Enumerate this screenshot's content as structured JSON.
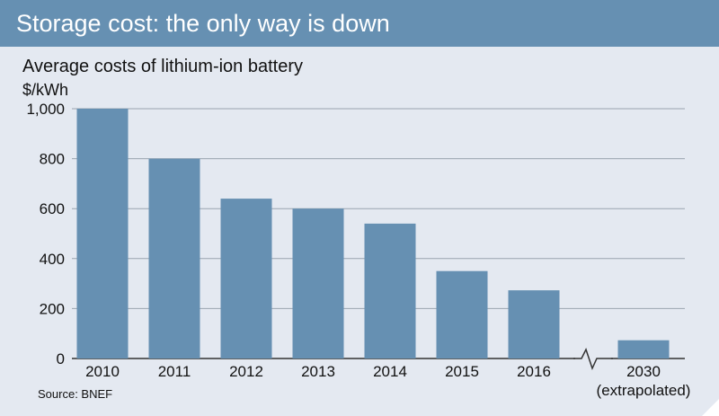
{
  "header": {
    "title": "Storage cost: the only way is down"
  },
  "chart_data": {
    "type": "bar",
    "title": "Average costs of lithium-ion battery",
    "ylabel": "$/kWh",
    "categories": [
      "2010",
      "2011",
      "2012",
      "2013",
      "2014",
      "2015",
      "2016",
      "2030"
    ],
    "category_notes": {
      "2030": "(extrapolated)"
    },
    "values": [
      1000,
      800,
      640,
      600,
      540,
      350,
      273,
      73
    ],
    "ylim": [
      0,
      1000
    ],
    "yticks": [
      0,
      200,
      400,
      600,
      800,
      1000
    ],
    "ytick_labels": [
      "0",
      "200",
      "400",
      "600",
      "800",
      "1,000"
    ],
    "axis_break_between": [
      "2016",
      "2030"
    ],
    "grid": true,
    "bar_color": "#6690b2",
    "source": "Source: BNEF"
  }
}
